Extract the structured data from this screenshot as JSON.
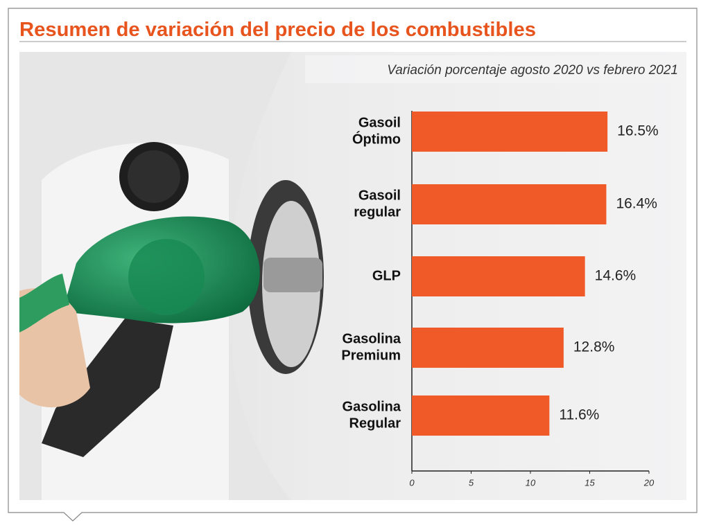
{
  "chart_data": {
    "type": "bar",
    "orientation": "horizontal",
    "title": "Resumen de variación del precio de los combustibles",
    "subtitle": "Variación porcentaje agosto 2020 vs febrero 2021",
    "categories": [
      [
        "Gasoil",
        "Óptimo"
      ],
      [
        "Gasoil",
        "regular"
      ],
      [
        "GLP"
      ],
      [
        "Gasolina",
        "Premium"
      ],
      [
        "Gasolina",
        "Regular"
      ]
    ],
    "values": [
      16.5,
      16.4,
      14.6,
      12.8,
      11.6
    ],
    "value_labels": [
      "16.5%",
      "16.4%",
      "14.6%",
      "12.8%",
      "11.6%"
    ],
    "color": "#f05a28",
    "xlim": [
      0,
      20
    ],
    "xticks": [
      0,
      5,
      10,
      15,
      20
    ]
  }
}
